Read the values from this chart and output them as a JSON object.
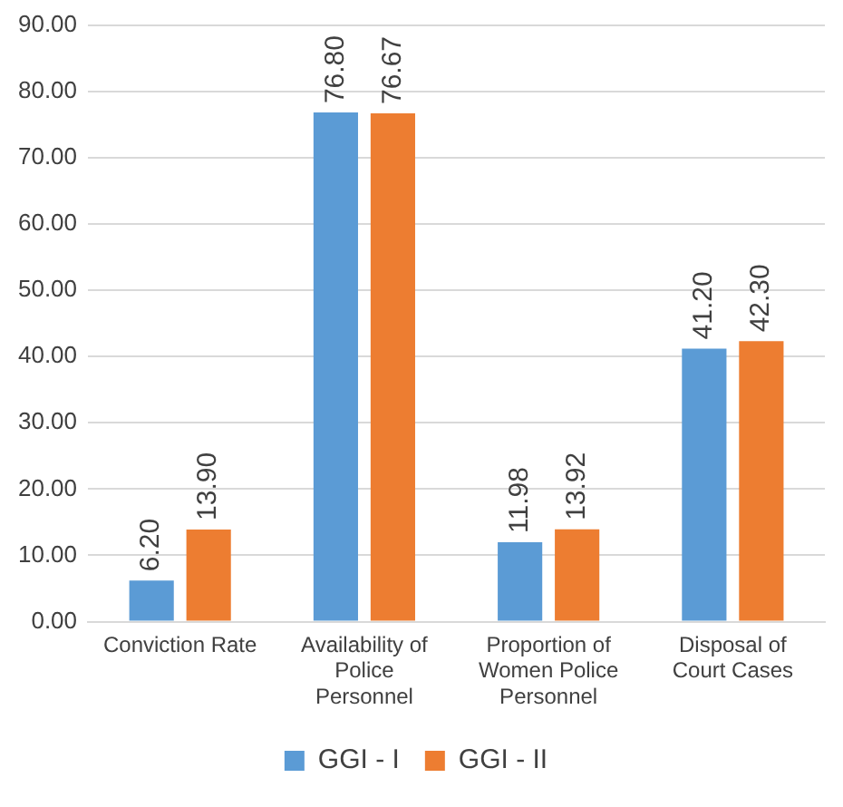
{
  "chart_data": {
    "type": "bar",
    "categories": [
      "Conviction Rate",
      "Availability of Police Personnel",
      "Proportion of Women Police Personnel",
      "Disposal of Court Cases"
    ],
    "series": [
      {
        "name": "GGI - I",
        "color": "#5b9bd5",
        "values": [
          6.2,
          76.8,
          11.98,
          41.2
        ],
        "value_labels": [
          "6.20",
          "76.80",
          "11.98",
          "41.20"
        ]
      },
      {
        "name": "GGI - II",
        "color": "#ed7d31",
        "values": [
          13.9,
          76.67,
          13.92,
          42.3
        ],
        "value_labels": [
          "13.90",
          "76.67",
          "13.92",
          "42.30"
        ]
      }
    ],
    "ylim": [
      0,
      90
    ],
    "yticks": [
      {
        "value": 0,
        "label": "0.00"
      },
      {
        "value": 10,
        "label": "10.00"
      },
      {
        "value": 20,
        "label": "20.00"
      },
      {
        "value": 30,
        "label": "30.00"
      },
      {
        "value": 40,
        "label": "40.00"
      },
      {
        "value": 50,
        "label": "50.00"
      },
      {
        "value": 60,
        "label": "60.00"
      },
      {
        "value": 70,
        "label": "70.00"
      },
      {
        "value": 80,
        "label": "80.00"
      },
      {
        "value": 90,
        "label": "90.00"
      }
    ],
    "grid": "y",
    "legend": "bottom"
  }
}
